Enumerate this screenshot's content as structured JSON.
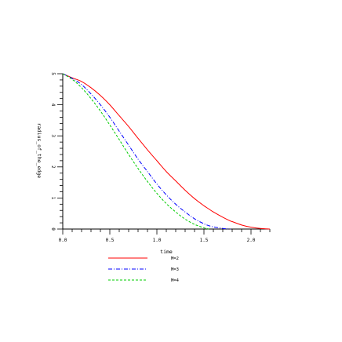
{
  "chart_data": {
    "type": "line",
    "title": "",
    "xlabel": "time",
    "ylabel": "radius_of_the_edge",
    "xlim": [
      0,
      2.2
    ],
    "ylim": [
      0,
      5
    ],
    "xticks": [
      0.0,
      0.5,
      1.0,
      1.5,
      2.0
    ],
    "xtick_labels": [
      "0.0",
      "0.5",
      "1.0",
      "1.5",
      "2.0"
    ],
    "yticks": [
      0,
      1,
      2,
      3,
      4,
      5
    ],
    "ytick_labels": [
      "0",
      "1",
      "2",
      "3",
      "4",
      "5"
    ],
    "grid": false,
    "legend_position": "bottom-center",
    "series": [
      {
        "name": "M=2",
        "color": "#ff0000",
        "dash": "solid",
        "end_time": 2.2
      },
      {
        "name": "M=3",
        "color": "#0000ff",
        "dash": "dash-dot",
        "end_time": 1.78
      },
      {
        "name": "M=4",
        "color": "#00cc00",
        "dash": "dashed",
        "end_time": 1.55
      }
    ],
    "x": [
      0.0,
      0.1,
      0.2,
      0.3,
      0.4,
      0.5,
      0.6,
      0.7,
      0.8,
      0.9,
      1.0,
      1.1,
      1.2,
      1.3,
      1.4,
      1.5,
      1.55,
      1.6,
      1.7,
      1.78,
      1.8,
      1.9,
      2.0,
      2.1,
      2.2
    ],
    "series_values": {
      "M=2": [
        5.0,
        4.87,
        4.75,
        4.55,
        4.3,
        4.0,
        3.65,
        3.3,
        2.92,
        2.55,
        2.2,
        1.85,
        1.55,
        1.25,
        0.98,
        0.75,
        0.65,
        0.55,
        0.38,
        0.26,
        0.24,
        0.13,
        0.06,
        0.02,
        0.0
      ],
      "M=3": [
        5.0,
        4.85,
        4.65,
        4.35,
        4.0,
        3.6,
        3.15,
        2.7,
        2.25,
        1.85,
        1.45,
        1.1,
        0.8,
        0.55,
        0.33,
        0.17,
        0.11,
        0.07,
        0.02,
        0.0,
        null,
        null,
        null,
        null,
        null
      ],
      "M=4": [
        5.0,
        4.82,
        4.55,
        4.2,
        3.8,
        3.35,
        2.88,
        2.4,
        1.95,
        1.53,
        1.15,
        0.82,
        0.55,
        0.32,
        0.15,
        0.04,
        0.0,
        null,
        null,
        null,
        null,
        null,
        null,
        null,
        null
      ]
    }
  }
}
